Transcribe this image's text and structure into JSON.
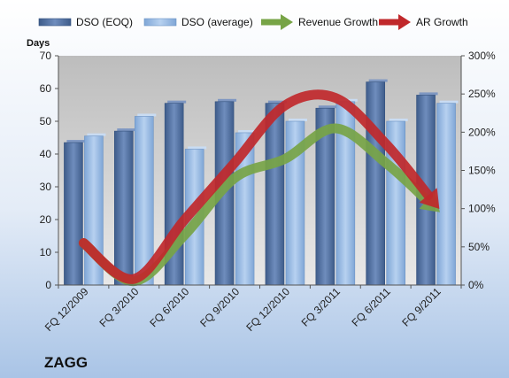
{
  "chart_data": {
    "type": "bar",
    "brand": "ZAGG",
    "ylabel": "Days",
    "ylim": [
      0,
      70
    ],
    "y_ticks": [
      0,
      10,
      20,
      30,
      40,
      50,
      60,
      70
    ],
    "y2lim": [
      0,
      300
    ],
    "y2_ticks": [
      "0%",
      "50%",
      "100%",
      "150%",
      "200%",
      "250%",
      "300%"
    ],
    "categories": [
      "FQ 12/2009",
      "FQ 3/2010",
      "FQ 6/2010",
      "FQ 9/2010",
      "FQ 12/2010",
      "FQ 3/2011",
      "FQ 6/2011",
      "FQ 9/2011"
    ],
    "series": [
      {
        "name": "DSO (EOQ)",
        "kind": "bar",
        "axis": "left",
        "color": "#4F6E9E",
        "values": [
          43.5,
          47,
          55.5,
          56,
          55.5,
          54,
          62,
          58
        ]
      },
      {
        "name": "DSO (average)",
        "kind": "bar",
        "axis": "left",
        "color": "#8DB3E2",
        "values": [
          45.5,
          51.5,
          41.5,
          46.5,
          50,
          56,
          50,
          55.5
        ]
      },
      {
        "name": "Revenue Growth",
        "kind": "arrow",
        "axis": "right",
        "color": "#77A446",
        "values": [
          55,
          5,
          65,
          140,
          165,
          205,
          160,
          100
        ]
      },
      {
        "name": "AR Growth",
        "kind": "arrow",
        "axis": "right",
        "color": "#C0282B",
        "values": [
          55,
          8,
          85,
          160,
          235,
          245,
          185,
          105
        ]
      }
    ],
    "grid": false,
    "legend": "top"
  }
}
